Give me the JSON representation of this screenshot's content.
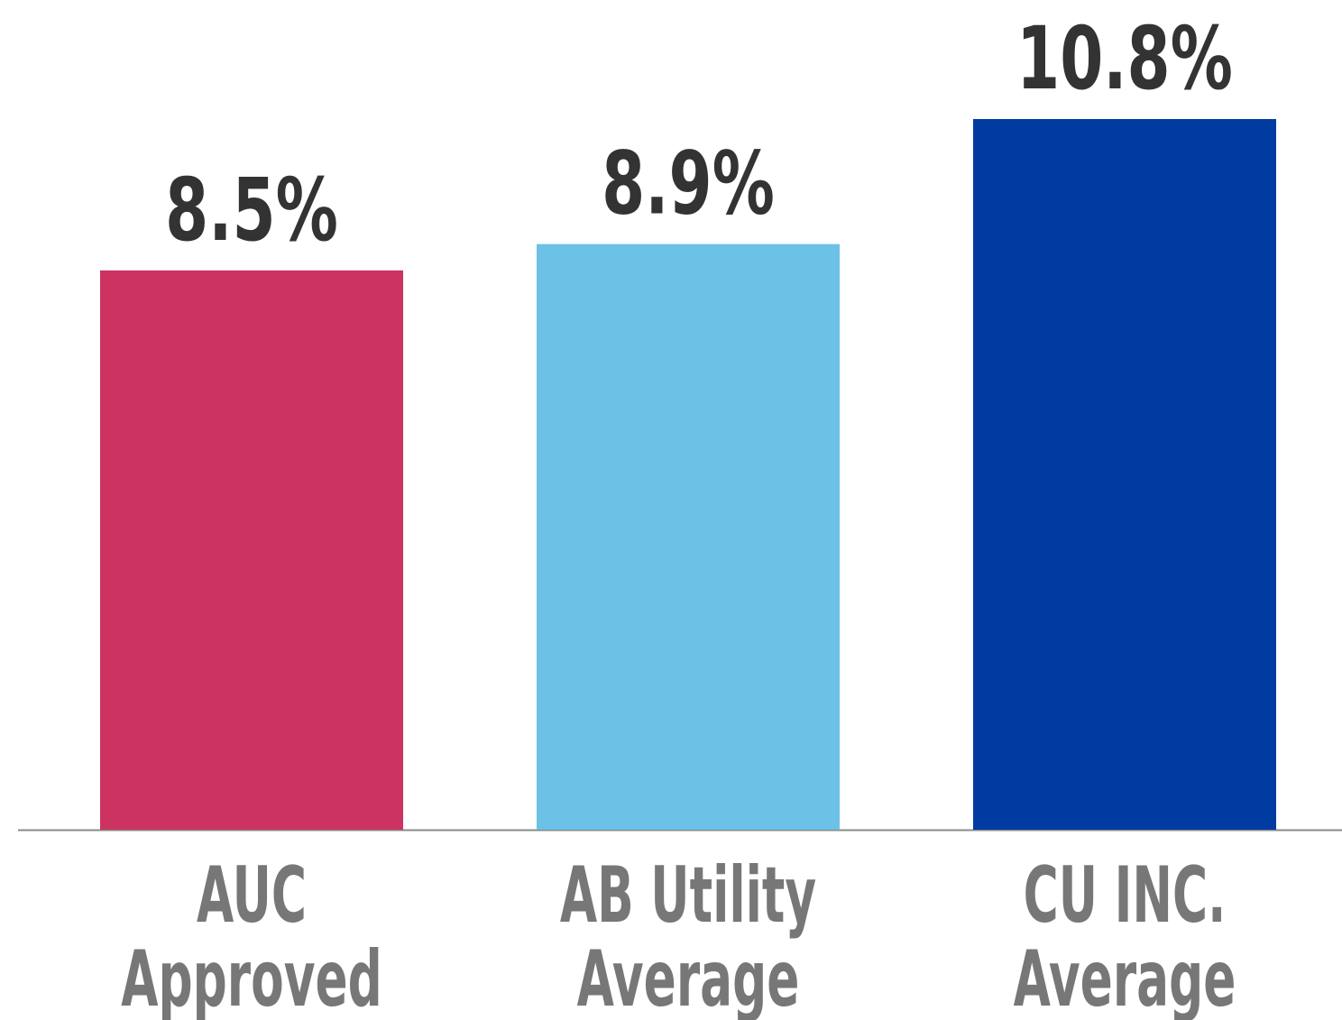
{
  "chart_data": {
    "type": "bar",
    "categories": [
      [
        "AUC",
        "Approved"
      ],
      [
        "AB Utility",
        "Average"
      ],
      [
        "CU INC.",
        "Average"
      ]
    ],
    "values": [
      8.5,
      8.9,
      10.8
    ],
    "value_labels": [
      "8.5%",
      "8.9%",
      "10.8%"
    ],
    "colors": [
      "#cc3360",
      "#6bc1e6",
      "#003ba1"
    ]
  }
}
